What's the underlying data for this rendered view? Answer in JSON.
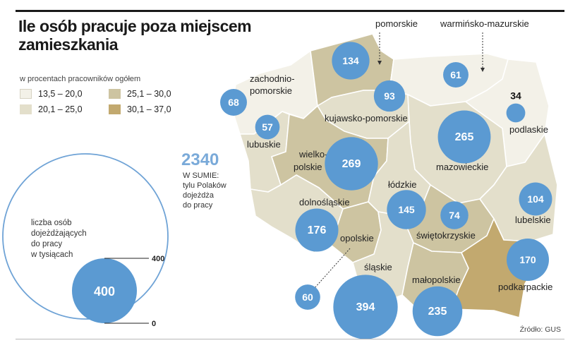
{
  "title": "Ile osób pracuje poza miejscem zamieszkania",
  "legend": {
    "subtitle": "w procentach pracowników ogółem",
    "items": [
      {
        "range": "13,5 – 20,0",
        "color": "#f3f1e8"
      },
      {
        "range": "20,1 – 25,0",
        "color": "#e3dfcb"
      },
      {
        "range": "25,1 – 30,0",
        "color": "#cdc4a1"
      },
      {
        "range": "30,1 – 37,0",
        "color": "#c2a96f"
      }
    ]
  },
  "scale": {
    "total_value": "2340",
    "total_note_lines": [
      "W SUMIE:",
      "tylu Polaków",
      "dojeżdża",
      "do pracy"
    ],
    "description_lines": [
      "liczba osób",
      "dojeżdżających",
      "do pracy",
      "w tysiącach"
    ],
    "reference_value": "400",
    "reference_tick_top": "400",
    "reference_tick_bottom": "0"
  },
  "chart_data": {
    "type": "proportional-symbol-map",
    "unit": "liczba osób dojeżdżających do pracy, w tysiącach",
    "total": 2340,
    "regions": [
      {
        "name": "pomorskie",
        "value": 134,
        "share_range": "25,1 – 30,0"
      },
      {
        "name": "warmińsko-mazurskie",
        "value": 61,
        "share_range": "13,5 – 20,0"
      },
      {
        "name": "zachodnio-pomorskie",
        "value": 68,
        "share_range": "13,5 – 20,0"
      },
      {
        "name": "kujawsko-pomorskie",
        "value": 93,
        "share_range": "20,1 – 25,0"
      },
      {
        "name": "podlaskie",
        "value": 34,
        "share_range": "13,5 – 20,0"
      },
      {
        "name": "lubuskie",
        "value": 57,
        "share_range": "20,1 – 25,0"
      },
      {
        "name": "wielko-polskie",
        "value": 269,
        "share_range": "25,1 – 30,0"
      },
      {
        "name": "mazowieckie",
        "value": 265,
        "share_range": "20,1 – 25,0"
      },
      {
        "name": "łódzkie",
        "value": 145,
        "share_range": "20,1 – 25,0"
      },
      {
        "name": "lubelskie",
        "value": 104,
        "share_range": "20,1 – 25,0"
      },
      {
        "name": "dolnośląskie",
        "value": 176,
        "share_range": "20,1 – 25,0"
      },
      {
        "name": "świętokrzyskie",
        "value": 74,
        "share_range": "25,1 – 30,0"
      },
      {
        "name": "opolskie",
        "value": 60,
        "share_range": "25,1 – 30,0"
      },
      {
        "name": "podkarpackie",
        "value": 170,
        "share_range": "30,1 – 37,0"
      },
      {
        "name": "śląskie",
        "value": 394,
        "share_range": "20,1 – 25,0"
      },
      {
        "name": "małopolskie",
        "value": 235,
        "share_range": "25,1 – 30,0"
      }
    ]
  },
  "source": "Źródło: GUS",
  "colors": {
    "bubble": "#5b9ad2",
    "bubble_text": "#ffffff",
    "scale_circle_stroke": "#6fa3d6",
    "total_value": "#7aaad9"
  }
}
